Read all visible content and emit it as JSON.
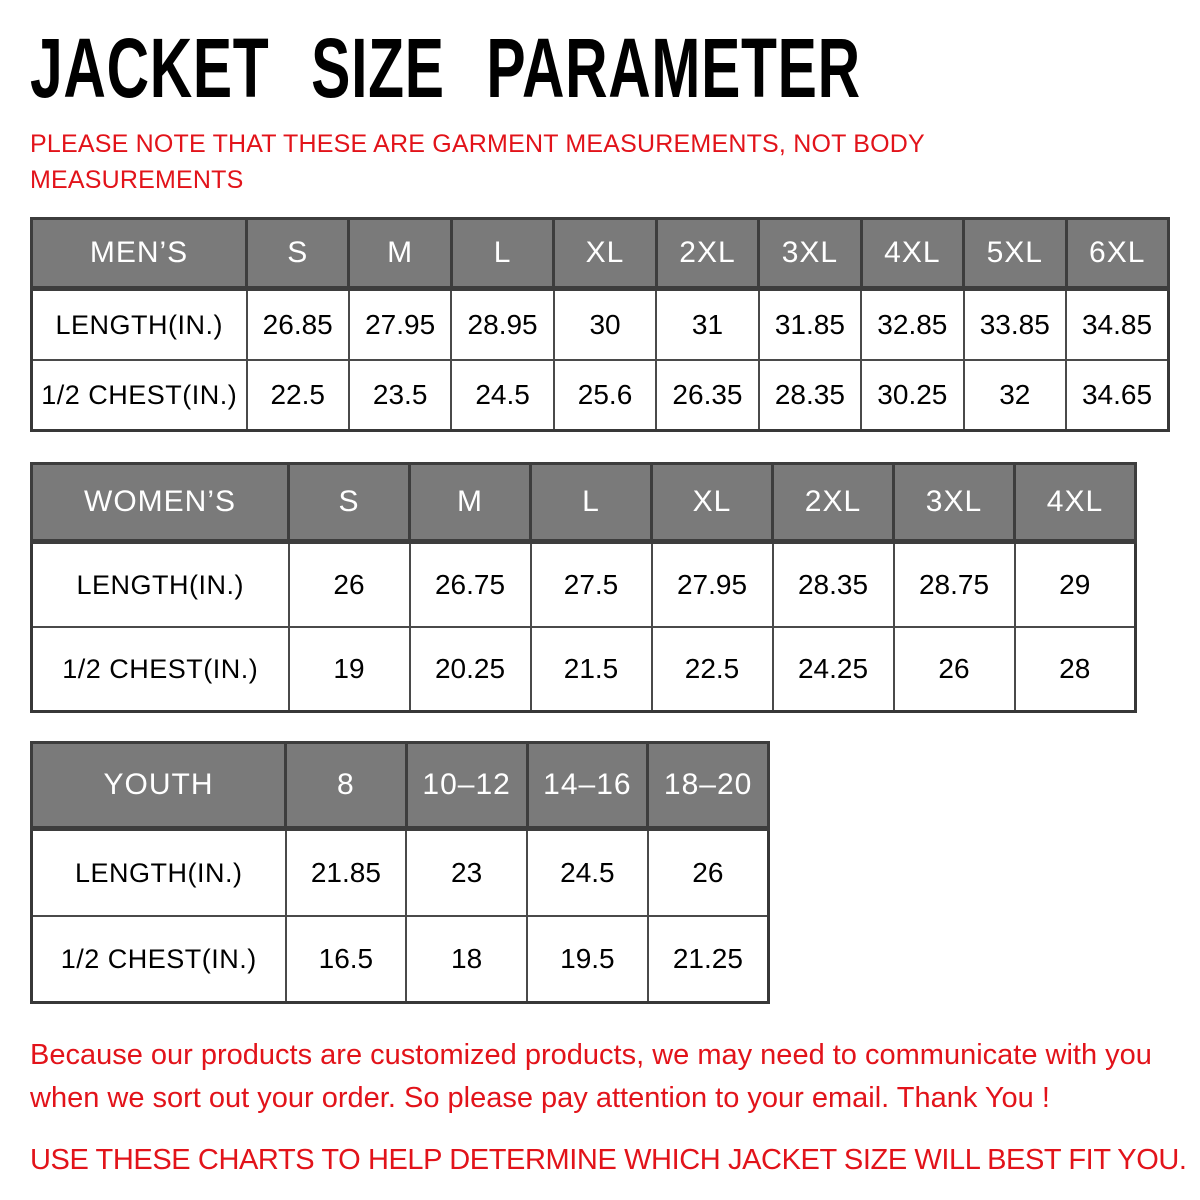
{
  "header": {
    "title": "JACKET SIZE PARAMETER",
    "note": "PLEASE NOTE THAT THESE ARE GARMENT MEASUREMENTS, NOT BODY MEASUREMENTS"
  },
  "tables": [
    {
      "id": "mens",
      "name": "MEN’S",
      "sizes": [
        "S",
        "M",
        "L",
        "XL",
        "2XL",
        "3XL",
        "4XL",
        "5XL",
        "6XL"
      ],
      "rows": [
        {
          "label": "LENGTH(IN.)",
          "values": [
            "26.85",
            "27.95",
            "28.95",
            "30",
            "31",
            "31.85",
            "32.85",
            "33.85",
            "34.85"
          ]
        },
        {
          "label": "1/2 CHEST(IN.)",
          "values": [
            "22.5",
            "23.5",
            "24.5",
            "25.6",
            "26.35",
            "28.35",
            "30.25",
            "32",
            "34.65"
          ]
        }
      ]
    },
    {
      "id": "womens",
      "name": "WOMEN’S",
      "sizes": [
        "S",
        "M",
        "L",
        "XL",
        "2XL",
        "3XL",
        "4XL"
      ],
      "rows": [
        {
          "label": "LENGTH(IN.)",
          "values": [
            "26",
            "26.75",
            "27.5",
            "27.95",
            "28.35",
            "28.75",
            "29"
          ]
        },
        {
          "label": "1/2 CHEST(IN.)",
          "values": [
            "19",
            "20.25",
            "21.5",
            "22.5",
            "24.25",
            "26",
            "28"
          ]
        }
      ]
    },
    {
      "id": "youth",
      "name": "YOUTH",
      "sizes": [
        "8",
        "10–12",
        "14–16",
        "18–20"
      ],
      "rows": [
        {
          "label": "LENGTH(IN.)",
          "values": [
            "21.85",
            "23",
            "24.5",
            "26"
          ]
        },
        {
          "label": "1/2 CHEST(IN.)",
          "values": [
            "16.5",
            "18",
            "19.5",
            "21.25"
          ]
        }
      ]
    }
  ],
  "footer": {
    "note1": "Because our products are customized products, we may need to communicate with you when we sort out your order. So please pay attention to your email. Thank You !",
    "note2": "USE THESE CHARTS TO HELP DETERMINE WHICH JACKET SIZE WILL BEST FIT YOU."
  },
  "colors": {
    "accent_red": "#e2131a",
    "header_gray": "#7a7a7a",
    "header_text": "#ffffff",
    "border_dark": "#3d3d3d",
    "text_black": "#000000"
  }
}
